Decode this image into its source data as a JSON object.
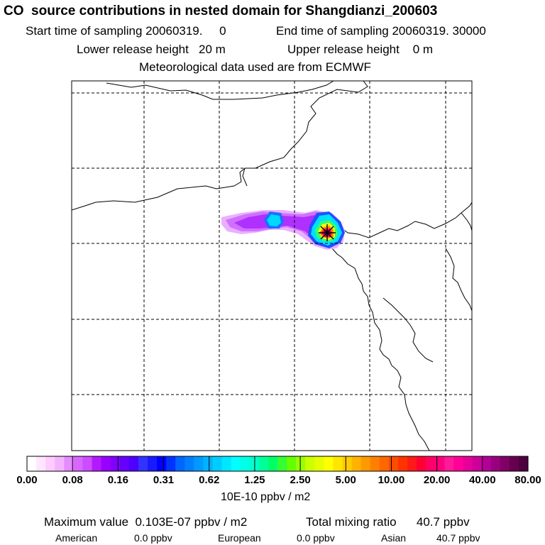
{
  "header": {
    "title": "CO  source contributions in nested domain for Shangdianzi_200603",
    "start_label": "Start time of sampling 20060319.     0",
    "end_label": "End time of sampling 20060319. 30000",
    "lower_label": "Lower release height   20 m",
    "upper_label": "Upper release height    0 m",
    "met_label": "Meteorological data used are from ECMWF"
  },
  "map": {
    "gridlines": "dashed",
    "source_marker": "star-icon",
    "plume_colors": [
      "#e0a0ff",
      "#c040ff",
      "#8000ff",
      "#0080ff",
      "#00e0ff",
      "#ffff00",
      "#ff8000",
      "#ff0080",
      "#800080"
    ]
  },
  "colorbar": {
    "tick_labels": [
      "0.00",
      "0.08",
      "0.16",
      "0.31",
      "0.62",
      "1.25",
      "2.50",
      "5.00",
      "10.00",
      "20.00",
      "40.00",
      "80.00"
    ],
    "colors": [
      "#ffffff",
      "#ffe6ff",
      "#ffccff",
      "#f5b3ff",
      "#e68cff",
      "#d966ff",
      "#cc4dff",
      "#b31aff",
      "#9900ff",
      "#8000ff",
      "#6600ff",
      "#4d00ff",
      "#3333ff",
      "#1a1aff",
      "#0000ff",
      "#0033ff",
      "#0066ff",
      "#0080ff",
      "#0099ff",
      "#00b3ff",
      "#00ccff",
      "#00e6ff",
      "#00ffff",
      "#00ffe6",
      "#00ffcc",
      "#00ff99",
      "#00ff66",
      "#33ff33",
      "#66ff00",
      "#99ff00",
      "#ccff00",
      "#e6ff00",
      "#ffff00",
      "#ffe600",
      "#ffcc00",
      "#ffb300",
      "#ff9900",
      "#ff8000",
      "#ff6600",
      "#ff4d00",
      "#ff3300",
      "#ff1a1a",
      "#ff0033",
      "#ff0066",
      "#ff0080",
      "#ff1a99",
      "#ff0099",
      "#e60099",
      "#cc0099",
      "#b30099",
      "#990080",
      "#800066",
      "#66004d",
      "#4d0040"
    ],
    "units": "10E-10 ppbv / m2"
  },
  "stats": {
    "max_label": "Maximum value  0.103E-07 ppbv / m2",
    "total_label": "Total mixing ratio      40.7 ppbv",
    "american_label": "American",
    "american_value": "0.0 ppbv",
    "european_label": "European",
    "european_value": "0.0 ppbv",
    "asian_label": "Asian",
    "asian_value": "40.7 ppbv"
  }
}
